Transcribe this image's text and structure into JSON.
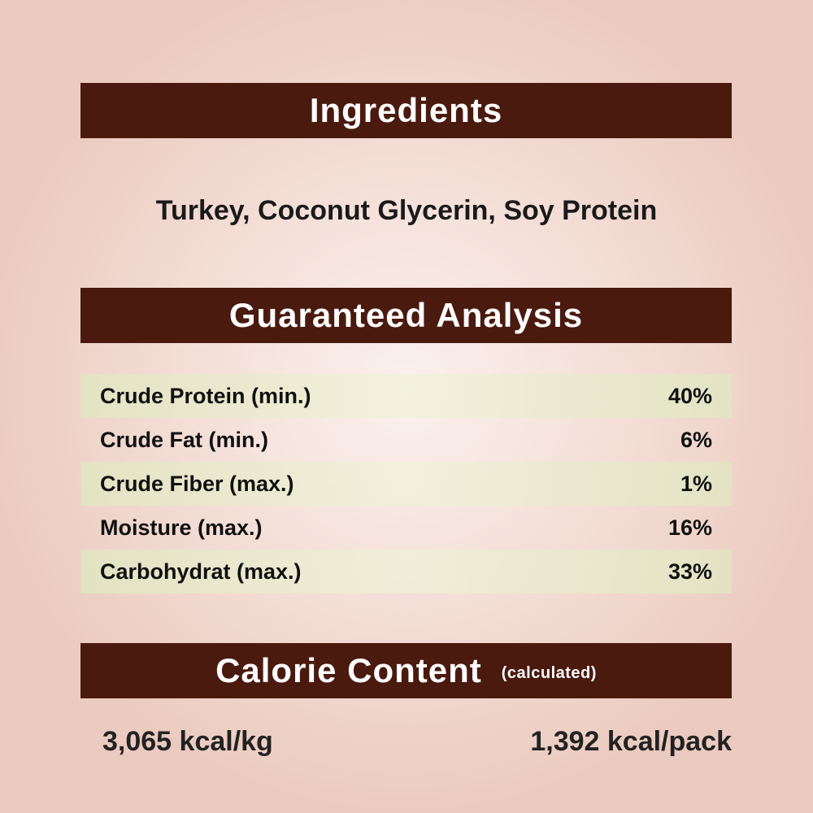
{
  "ingredients": {
    "heading": "Ingredients",
    "text": "Turkey, Coconut Glycerin, Soy Protein"
  },
  "analysis": {
    "heading": "Guaranteed Analysis",
    "rows": [
      {
        "label": "Crude Protein (min.)",
        "value": "40%"
      },
      {
        "label": "Crude Fat (min.)",
        "value": "6%"
      },
      {
        "label": "Crude Fiber (max.)",
        "value": "1%"
      },
      {
        "label": "Moisture (max.)",
        "value": "16%"
      },
      {
        "label": "Carbohydrat (max.)",
        "value": "33%"
      }
    ]
  },
  "calorie": {
    "heading": "Calorie Content",
    "note": "(calculated)",
    "per_kg": "3,065 kcal/kg",
    "per_pack": "1,392 kcal/pack"
  },
  "colors": {
    "header_bar": "#4a1a0f",
    "row_highlight": "#e6e8c8",
    "background": "#efd6cc"
  }
}
